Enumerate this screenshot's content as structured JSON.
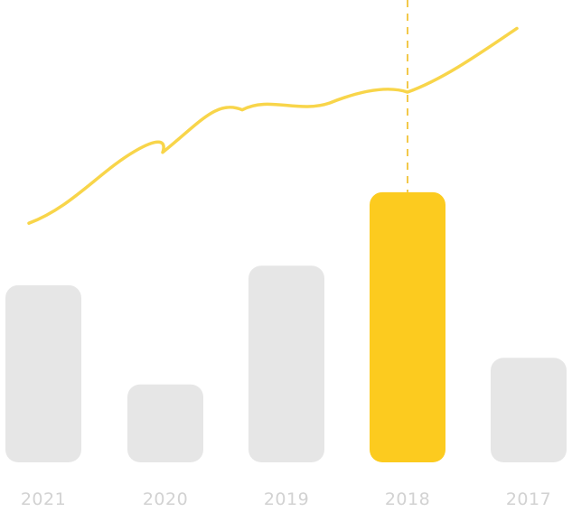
{
  "chart_data": {
    "type": "bar",
    "categories": [
      "2021",
      "2020",
      "2019",
      "2018",
      "2017"
    ],
    "series": [
      {
        "kind": "bar",
        "values": [
          200,
          88,
          222,
          305,
          118
        ]
      },
      {
        "kind": "line",
        "values": [
          270,
          350,
          398,
          418,
          490
        ]
      }
    ],
    "highlight_category": "2018",
    "ylim": [
      0,
      520
    ],
    "grid": false,
    "legend": "none",
    "colors": {
      "bar": "#e6e6e6",
      "bar_highlight": "#fccb1f",
      "line": "#f8d54a",
      "marker_line": "#f3c94a",
      "tick_label": "#d2d2d2"
    }
  }
}
